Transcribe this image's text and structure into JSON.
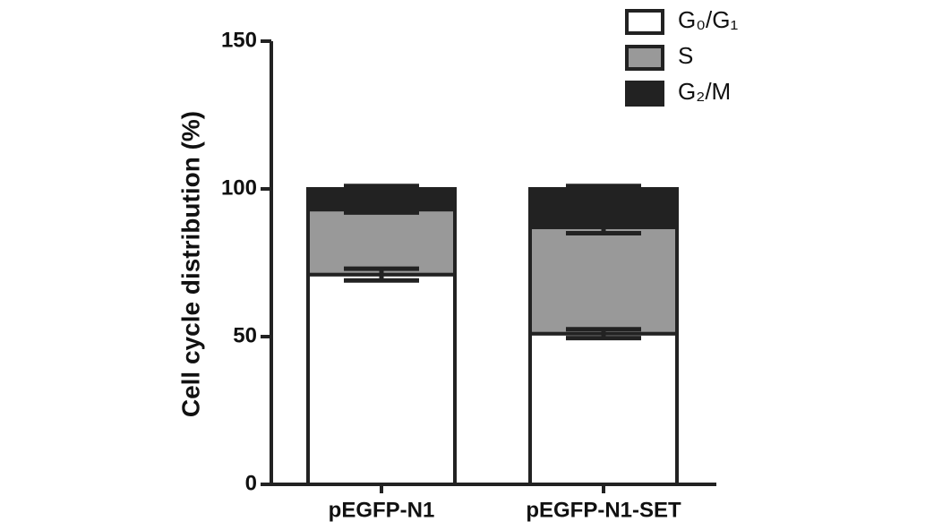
{
  "chart_data": {
    "type": "stacked_bar",
    "y_label": "Cell cycle distribution (%)",
    "categories": [
      "pEGFP-N1",
      "pEGFP-N1-SET"
    ],
    "series": [
      {
        "name": "G₀/G₁",
        "color": "#ffffff",
        "values": [
          71,
          51
        ],
        "errors": [
          2,
          1.5
        ]
      },
      {
        "name": "S",
        "color": "#999999",
        "values": [
          22,
          36
        ],
        "errors": [
          1,
          2
        ]
      },
      {
        "name": "G₂/M",
        "color": "#222222",
        "values": [
          7,
          13
        ],
        "errors": [
          1,
          1
        ]
      }
    ],
    "ylim": [
      0,
      150
    ],
    "yticks": [
      0,
      50,
      100,
      150
    ],
    "legend": "upper right"
  }
}
